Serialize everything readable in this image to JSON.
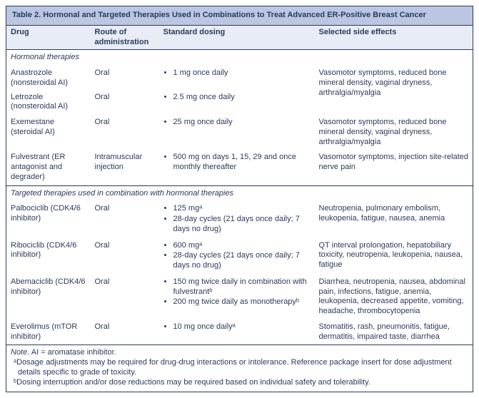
{
  "title": {
    "label": "Table 2.",
    "text": "Hormonal and Targeted Therapies Used in Combinations to Treat Advanced ER-Positive Breast Cancer"
  },
  "columns": [
    "Drug",
    "Route of administration",
    "Standard dosing",
    "Selected side effects"
  ],
  "section1": "Hormonal therapies",
  "section2": "Targeted therapies used in combination with hormonal therapies",
  "s1": {
    "r1": {
      "drug": "Anastrozole (nonsteroidal AI)",
      "route": "Oral",
      "dose1": "1 mg once daily"
    },
    "r2": {
      "drug": "Letrozole (nonsteroidal AI)",
      "route": "Oral",
      "dose1": "2.5 mg once daily"
    },
    "se12": "Vasomotor symptoms, reduced bone mineral density, vaginal dryness, arthralgia/myalgia",
    "r3": {
      "drug": "Exemestane (steroidal AI)",
      "route": "Oral",
      "dose1": "25 mg once daily",
      "se": "Vasomotor symptoms, reduced bone mineral density, vaginal dryness, arthralgia/myalgia"
    },
    "r4": {
      "drug": "Fulvestrant (ER antagonist and degrader)",
      "route": "Intramuscular injection",
      "dose1": "500 mg on days 1, 15, 29 and once monthly thereafter",
      "se": "Vasomotor symptoms, injection site-related nerve pain"
    }
  },
  "s2": {
    "r1": {
      "drug": "Palbociclib (CDK4/6 inhibitor)",
      "route": "Oral",
      "dose1": "125 mgᵃ",
      "dose2": "28-day cycles (21 days once daily; 7 days no drug)",
      "se": "Neutropenia, pulmonary embolism, leukopenia, fatigue, nausea, anemia"
    },
    "r2": {
      "drug": "Ribociclib (CDK4/6 inhibitor)",
      "route": "Oral",
      "dose1": "600 mgᵃ",
      "dose2": "28-day cycles (21 days once daily; 7 days no drug)",
      "se": "QT interval prolongation, hepatobiliary toxicity, neutropenia, leukopenia, nausea, fatigue"
    },
    "r3": {
      "drug": "Abemaciclib (CDK4/6 inhibitor)",
      "route": "Oral",
      "dose1": "150 mg twice daily in combination with fulvestrantᵇ",
      "dose2": "200 mg twice daily as monotherapyᵇ",
      "se": "Diarrhea, neutropenia, nausea, abdominal pain, infections, fatigue, anemia, leukopenia, decreased appetite, vomiting, headache, thrombocytopenia"
    },
    "r4": {
      "drug": "Everolimus (mTOR inhibitor)",
      "route": "Oral",
      "dose1": "10 mg once dailyᵃ",
      "se": "Stomatitis, rash, pneumonitis, fatigue, dermatitis, impaired taste, diarrhea"
    }
  },
  "notes": {
    "n1a": "Note",
    "n1b": ". AI = aromatase inhibitor.",
    "n2": "ᵃDosage adjustments may be required for drug-drug interactions or intolerance. Reference package insert for dose adjustment details specific to grade of toxicity.",
    "n3": "ᵇDosing interruption and/or dose reductions may be required based on individual safety and tolerability."
  }
}
